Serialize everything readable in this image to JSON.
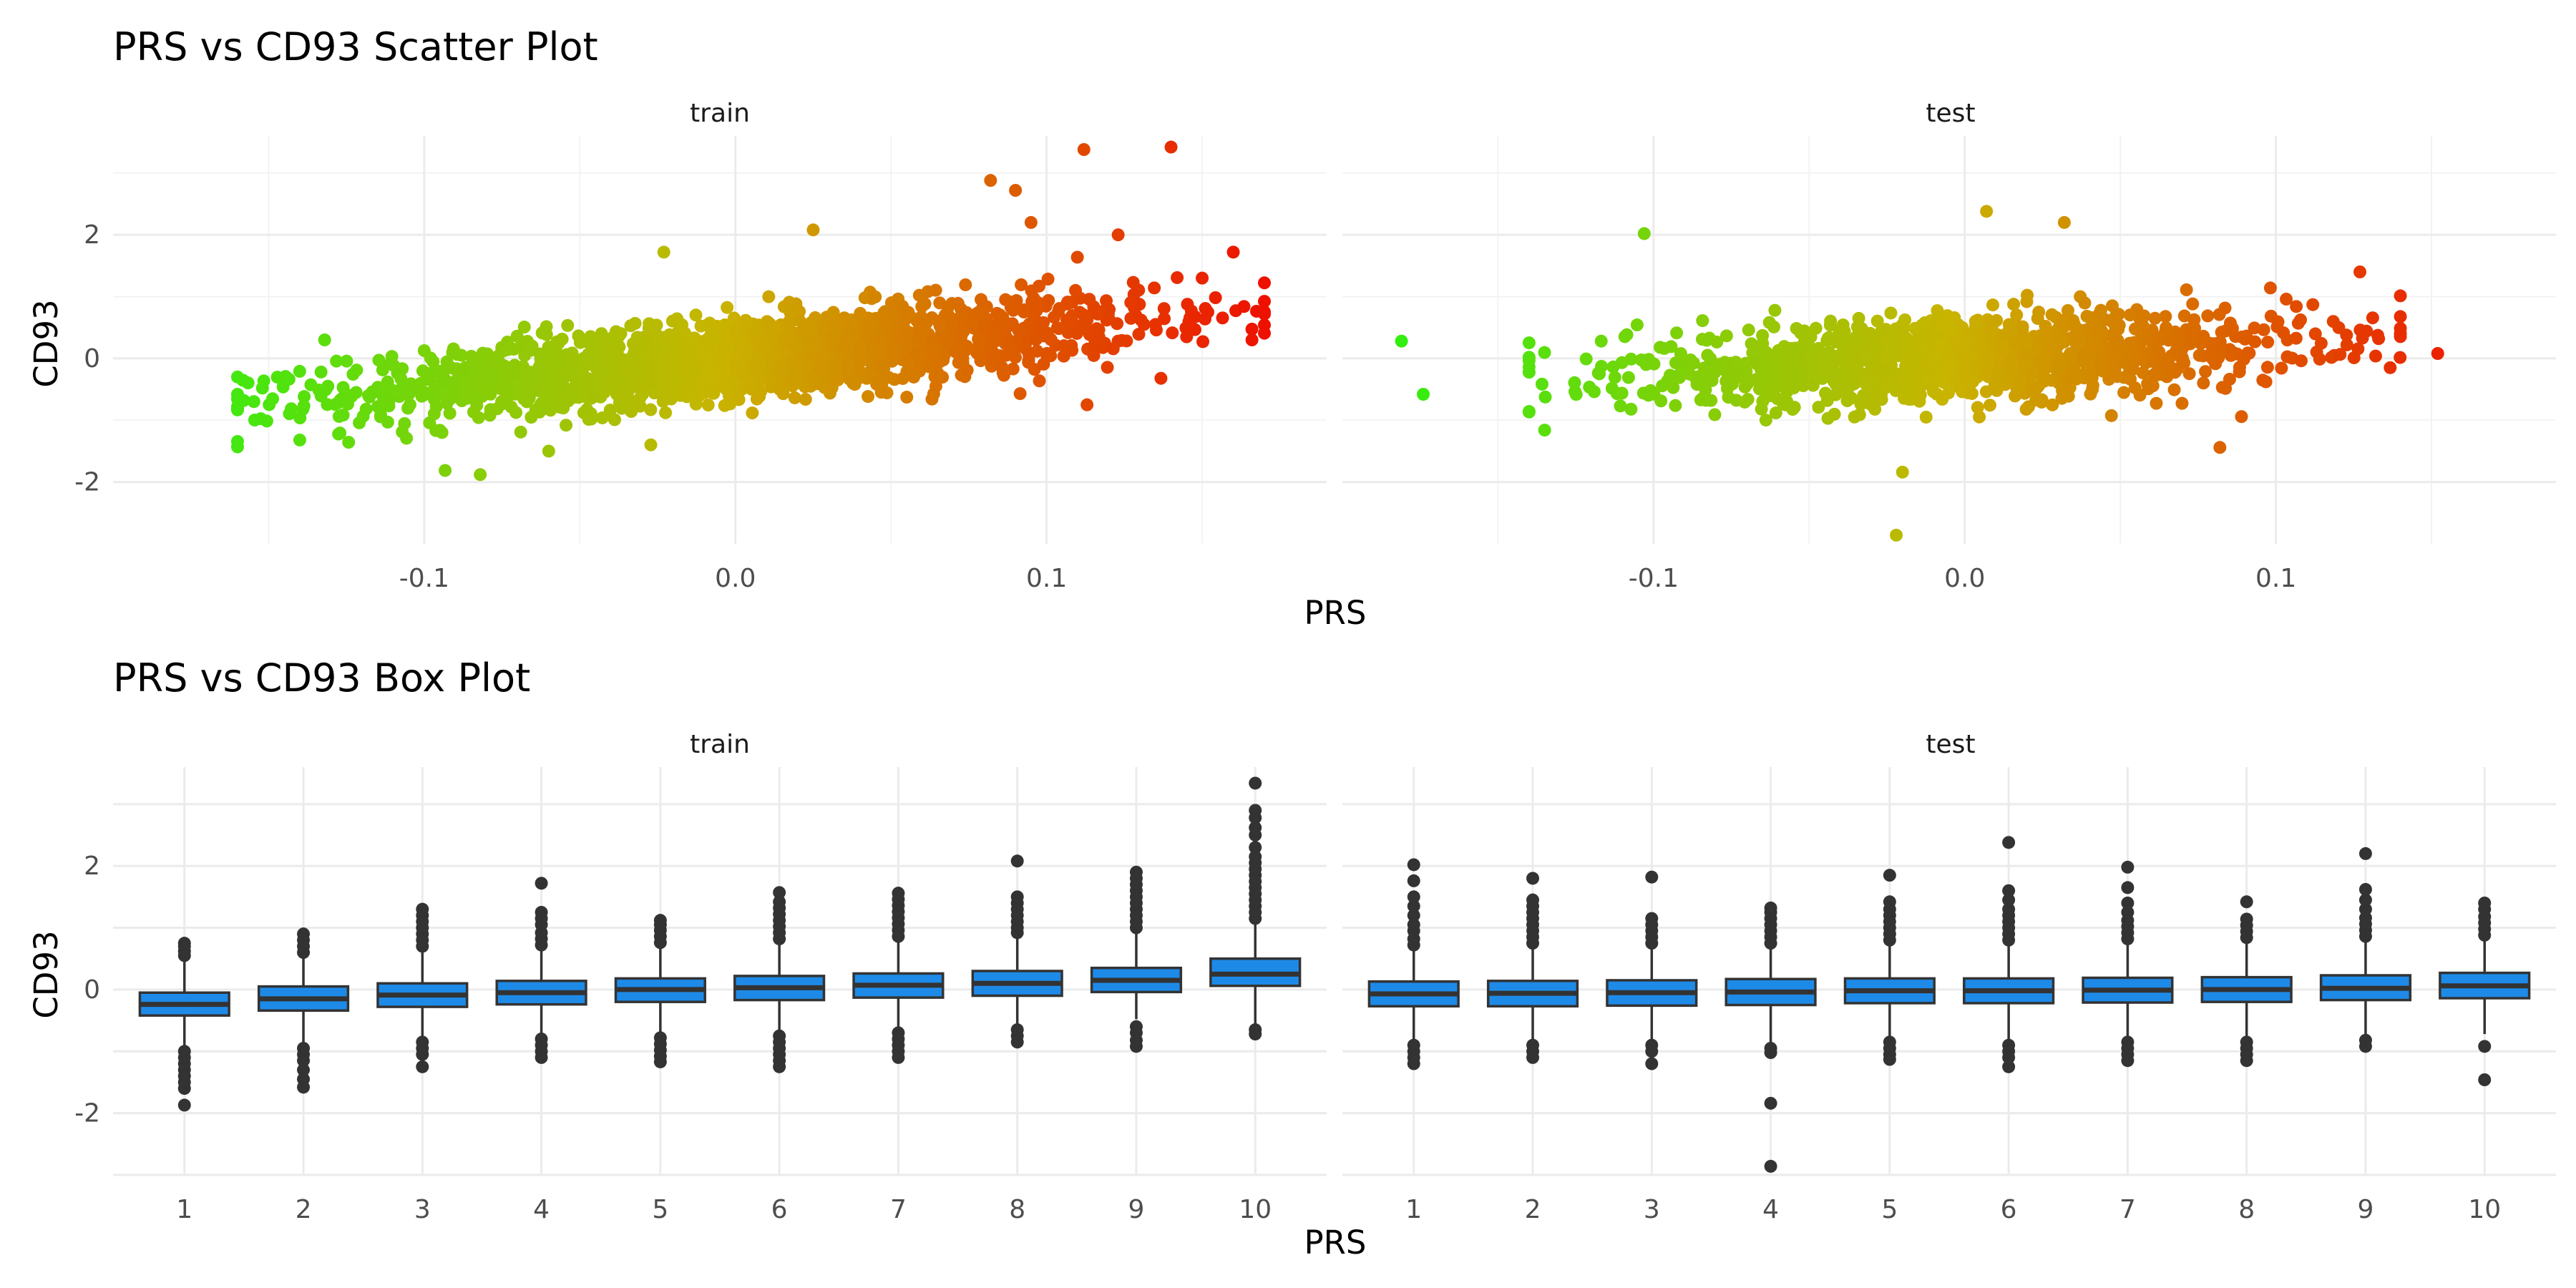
{
  "chart_data": [
    {
      "type": "scatter",
      "title": "PRS vs CD93 Scatter Plot",
      "xlabel": "PRS",
      "ylabel": "CD93",
      "xlim": [
        -0.2,
        0.19
      ],
      "ylim": [
        -3.0,
        3.6
      ],
      "x_ticks": [
        -0.1,
        0.0,
        0.1
      ],
      "x_tick_labels": [
        "-0.1",
        "0.0",
        "0.1"
      ],
      "y_ticks": [
        -2,
        0,
        2
      ],
      "y_tick_labels": [
        "-2",
        "0",
        "2"
      ],
      "grid": true,
      "legend": "none",
      "color_scale": {
        "low": "#33ee11",
        "mid": "#c9b400",
        "high": "#ee1100",
        "mapped_to": "PRS"
      },
      "panels": [
        {
          "name": "train",
          "trend": {
            "slope": 4.6,
            "intercept": 0.0
          },
          "x_range": [
            -0.16,
            0.17
          ],
          "n_points": 1800,
          "spread": 0.33,
          "outliers": [
            {
              "x": -0.16,
              "y": -0.3
            },
            {
              "x": -0.158,
              "y": -0.68
            },
            {
              "x": -0.152,
              "y": -0.48
            },
            {
              "x": -0.14,
              "y": -1.32
            },
            {
              "x": -0.132,
              "y": 0.3
            },
            {
              "x": -0.082,
              "y": -1.88
            },
            {
              "x": -0.06,
              "y": -1.5
            },
            {
              "x": -0.023,
              "y": 1.72
            },
            {
              "x": 0.025,
              "y": 2.08
            },
            {
              "x": 0.082,
              "y": 2.88
            },
            {
              "x": 0.09,
              "y": 2.72
            },
            {
              "x": 0.095,
              "y": 2.2
            },
            {
              "x": 0.112,
              "y": 3.38
            },
            {
              "x": 0.123,
              "y": 2.0
            },
            {
              "x": 0.14,
              "y": 3.42
            },
            {
              "x": 0.113,
              "y": -0.75
            },
            {
              "x": 0.15,
              "y": 1.3
            },
            {
              "x": 0.16,
              "y": 1.72
            },
            {
              "x": 0.166,
              "y": 0.3
            },
            {
              "x": 0.145,
              "y": 0.35
            },
            {
              "x": 0.135,
              "y": 0.55
            }
          ]
        },
        {
          "name": "test",
          "trend": {
            "slope": 2.1,
            "intercept": 0.0
          },
          "x_range": [
            -0.14,
            0.14
          ],
          "n_points": 1300,
          "spread": 0.33,
          "outliers": [
            {
              "x": -0.181,
              "y": 0.28
            },
            {
              "x": -0.174,
              "y": -0.58
            },
            {
              "x": -0.135,
              "y": -1.16
            },
            {
              "x": -0.103,
              "y": 2.02
            },
            {
              "x": -0.02,
              "y": -1.84
            },
            {
              "x": -0.022,
              "y": -2.86
            },
            {
              "x": 0.007,
              "y": 2.38
            },
            {
              "x": 0.032,
              "y": 2.2
            },
            {
              "x": 0.082,
              "y": -1.44
            },
            {
              "x": 0.127,
              "y": 1.4
            },
            {
              "x": 0.152,
              "y": 0.08
            },
            {
              "x": 0.133,
              "y": 0.32
            }
          ]
        }
      ]
    },
    {
      "type": "box",
      "title": "PRS vs CD93 Box Plot",
      "xlabel": "PRS",
      "ylabel": "CD93",
      "categories": [
        "1",
        "2",
        "3",
        "4",
        "5",
        "6",
        "7",
        "8",
        "9",
        "10"
      ],
      "ylim": [
        -3.0,
        3.6
      ],
      "y_ticks": [
        -2,
        0,
        2
      ],
      "y_tick_labels": [
        "-2",
        "0",
        "2"
      ],
      "grid": true,
      "box_color": "#1e8ae8",
      "line_color": "#333333",
      "panels": [
        {
          "name": "train",
          "boxes": [
            {
              "q1": -0.42,
              "median": -0.24,
              "q3": -0.05,
              "lower": -0.9,
              "upper": 0.5,
              "outliers": [
                0.55,
                0.62,
                0.7,
                0.75,
                -1.0,
                -1.1,
                -1.2,
                -1.3,
                -1.4,
                -1.5,
                -1.6,
                -1.87
              ]
            },
            {
              "q1": -0.34,
              "median": -0.15,
              "q3": 0.05,
              "lower": -0.85,
              "upper": 0.55,
              "outliers": [
                0.6,
                0.7,
                0.8,
                0.9,
                -0.95,
                -1.05,
                -1.15,
                -1.3,
                -1.45,
                -1.58
              ]
            },
            {
              "q1": -0.28,
              "median": -0.09,
              "q3": 0.1,
              "lower": -0.78,
              "upper": 0.62,
              "outliers": [
                0.7,
                0.8,
                0.9,
                1.0,
                1.1,
                1.2,
                1.3,
                -0.85,
                -0.95,
                -1.05,
                -1.25
              ]
            },
            {
              "q1": -0.24,
              "median": -0.05,
              "q3": 0.14,
              "lower": -0.72,
              "upper": 0.66,
              "outliers": [
                0.72,
                0.82,
                0.92,
                1.05,
                1.15,
                1.25,
                1.72,
                -0.8,
                -0.9,
                -1.0,
                -1.1
              ]
            },
            {
              "q1": -0.2,
              "median": 0.0,
              "q3": 0.18,
              "lower": -0.7,
              "upper": 0.7,
              "outliers": [
                0.76,
                0.86,
                0.96,
                1.05,
                1.12,
                -0.78,
                -0.88,
                -0.98,
                -1.08,
                -1.17
              ]
            },
            {
              "q1": -0.17,
              "median": 0.03,
              "q3": 0.22,
              "lower": -0.66,
              "upper": 0.76,
              "outliers": [
                0.82,
                0.92,
                1.02,
                1.12,
                1.22,
                1.32,
                1.42,
                1.57,
                -0.75,
                -0.85,
                -0.95,
                -1.05,
                -1.15,
                -1.25
              ]
            },
            {
              "q1": -0.13,
              "median": 0.07,
              "q3": 0.26,
              "lower": -0.6,
              "upper": 0.8,
              "outliers": [
                0.86,
                0.96,
                1.06,
                1.16,
                1.26,
                1.36,
                1.46,
                1.56,
                -0.7,
                -0.8,
                -0.9,
                -1.0,
                -1.1
              ]
            },
            {
              "q1": -0.1,
              "median": 0.1,
              "q3": 0.3,
              "lower": -0.55,
              "upper": 0.85,
              "outliers": [
                0.92,
                1.0,
                1.1,
                1.2,
                1.3,
                1.4,
                1.5,
                2.08,
                -0.65,
                -0.75,
                -0.85
              ]
            },
            {
              "q1": -0.04,
              "median": 0.15,
              "q3": 0.35,
              "lower": -0.48,
              "upper": 0.95,
              "outliers": [
                1.0,
                1.1,
                1.2,
                1.3,
                1.4,
                1.5,
                1.6,
                1.7,
                1.8,
                1.9,
                -0.6,
                -0.7,
                -0.82,
                -0.92
              ]
            },
            {
              "q1": 0.06,
              "median": 0.25,
              "q3": 0.5,
              "lower": -0.6,
              "upper": 1.1,
              "outliers": [
                1.15,
                1.25,
                1.35,
                1.45,
                1.55,
                1.65,
                1.75,
                1.85,
                1.95,
                2.05,
                2.15,
                2.3,
                2.5,
                2.62,
                2.78,
                2.9,
                3.34,
                -0.65,
                -0.72
              ]
            }
          ]
        },
        {
          "name": "test",
          "boxes": [
            {
              "q1": -0.27,
              "median": -0.07,
              "q3": 0.13,
              "lower": -0.85,
              "upper": 0.65,
              "outliers": [
                0.72,
                0.82,
                0.95,
                1.05,
                1.2,
                1.35,
                1.5,
                1.76,
                2.02,
                -0.9,
                -1.0,
                -1.1,
                -1.2
              ]
            },
            {
              "q1": -0.27,
              "median": -0.06,
              "q3": 0.14,
              "lower": -0.85,
              "upper": 0.7,
              "outliers": [
                0.75,
                0.85,
                0.95,
                1.05,
                1.15,
                1.25,
                1.35,
                1.45,
                1.8,
                -0.9,
                -1.0,
                -1.1
              ]
            },
            {
              "q1": -0.26,
              "median": -0.05,
              "q3": 0.15,
              "lower": -0.85,
              "upper": 0.7,
              "outliers": [
                0.75,
                0.85,
                0.95,
                1.05,
                1.15,
                1.82,
                -0.9,
                -1.0,
                -1.2
              ]
            },
            {
              "q1": -0.25,
              "median": -0.04,
              "q3": 0.17,
              "lower": -0.85,
              "upper": 0.7,
              "outliers": [
                0.75,
                0.85,
                0.95,
                1.05,
                1.15,
                1.25,
                1.32,
                -0.95,
                -1.02,
                -1.84,
                -2.86
              ]
            },
            {
              "q1": -0.22,
              "median": -0.02,
              "q3": 0.18,
              "lower": -0.8,
              "upper": 0.75,
              "outliers": [
                0.8,
                0.9,
                1.0,
                1.1,
                1.2,
                1.3,
                1.42,
                1.85,
                -0.85,
                -0.95,
                -1.05,
                -1.13
              ]
            },
            {
              "q1": -0.22,
              "median": -0.02,
              "q3": 0.18,
              "lower": -0.8,
              "upper": 0.75,
              "outliers": [
                0.8,
                0.9,
                1.0,
                1.1,
                1.2,
                1.3,
                1.45,
                1.6,
                2.38,
                -0.9,
                -1.0,
                -1.1,
                -1.25
              ]
            },
            {
              "q1": -0.21,
              "median": -0.01,
              "q3": 0.19,
              "lower": -0.78,
              "upper": 0.76,
              "outliers": [
                0.82,
                0.92,
                1.02,
                1.12,
                1.25,
                1.4,
                1.65,
                1.98,
                -0.85,
                -0.95,
                -1.05,
                -1.15
              ]
            },
            {
              "q1": -0.2,
              "median": 0.0,
              "q3": 0.2,
              "lower": -0.78,
              "upper": 0.78,
              "outliers": [
                0.84,
                0.94,
                1.04,
                1.14,
                1.42,
                -0.85,
                -0.95,
                -1.05,
                -1.15
              ]
            },
            {
              "q1": -0.17,
              "median": 0.02,
              "q3": 0.23,
              "lower": -0.75,
              "upper": 0.8,
              "outliers": [
                0.86,
                0.96,
                1.06,
                1.16,
                1.3,
                1.45,
                1.62,
                2.2,
                -0.82,
                -0.92
              ]
            },
            {
              "q1": -0.14,
              "median": 0.06,
              "q3": 0.27,
              "lower": -0.72,
              "upper": 0.82,
              "outliers": [
                0.88,
                0.98,
                1.08,
                1.18,
                1.3,
                1.4,
                -0.92,
                -1.46
              ]
            }
          ]
        }
      ]
    }
  ]
}
